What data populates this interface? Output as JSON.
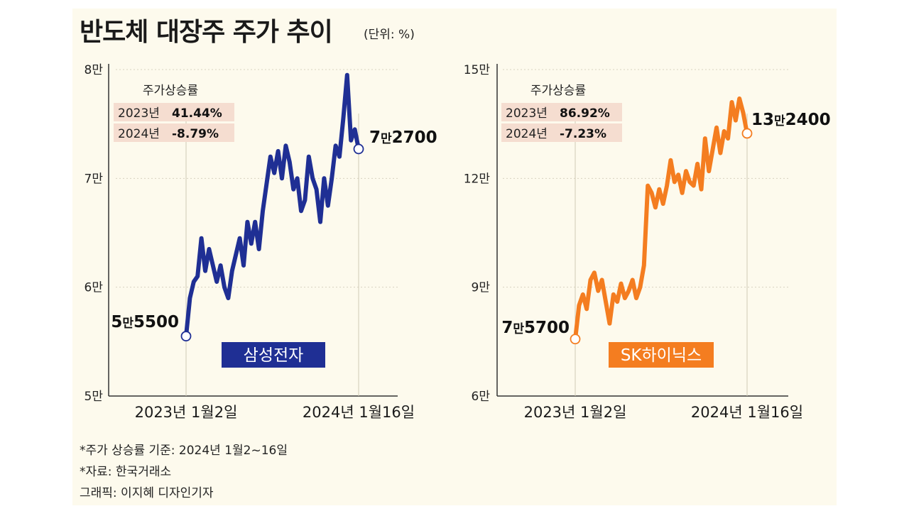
{
  "header": {
    "title": "반도체 대장주 주가 추이",
    "unit": "(단위: %)"
  },
  "footnotes": {
    "basis": "*주가 상승률 기준: 2024년 1월2~16일",
    "source": "*자료: 한국거래소",
    "credit": "그래픽: 이지혜 디자인기자"
  },
  "chart_data": [
    {
      "type": "line",
      "title": "삼성전자",
      "color": "#1f2f94",
      "yticks": [
        "8만",
        "7만",
        "6만",
        "5만"
      ],
      "ylim": [
        50000,
        80000
      ],
      "xlabels": [
        "2023년 1월2일",
        "2024년 1월16일"
      ],
      "box_title": "주가상승률",
      "box_rows": [
        {
          "year": "2023년",
          "value": "41.44%"
        },
        {
          "year": "2024년",
          "value": "-8.79%"
        }
      ],
      "start_label": {
        "prefix": "5",
        "man": "만",
        "rest": "5500"
      },
      "end_label": {
        "prefix": "7",
        "man": "만",
        "rest": "2700"
      },
      "series": [
        {
          "values": [
            55500,
            59000,
            60500,
            61000,
            64500,
            61500,
            63500,
            62000,
            60500,
            62000,
            60000,
            59000,
            61500,
            63000,
            64500,
            62000,
            66000,
            64000,
            66000,
            63500,
            67000,
            69500,
            72000,
            70500,
            72500,
            70000,
            73000,
            71500,
            69000,
            70000,
            67000,
            68000,
            72000,
            70000,
            69000,
            66000,
            70000,
            67500,
            70000,
            73000,
            72000,
            75500,
            79500,
            73500,
            74500,
            72700
          ]
        }
      ]
    },
    {
      "type": "line",
      "title": "SK하이닉스",
      "color": "#f47d20",
      "yticks": [
        "15만",
        "12만",
        "9만",
        "6만"
      ],
      "ylim": [
        60000,
        150000
      ],
      "xlabels": [
        "2023년 1월2일",
        "2024년 1월16일"
      ],
      "box_title": "주가상승률",
      "box_rows": [
        {
          "year": "2023년",
          "value": "86.92%"
        },
        {
          "year": "2024년",
          "value": "-7.23%"
        }
      ],
      "start_label": {
        "prefix": "7",
        "man": "만",
        "rest": "5700"
      },
      "end_label": {
        "prefix": "13",
        "man": "만",
        "rest": "2400"
      },
      "series": [
        {
          "values": [
            75700,
            85000,
            88000,
            84000,
            92000,
            94000,
            89000,
            92000,
            86000,
            80000,
            88000,
            86000,
            91000,
            87000,
            89000,
            92000,
            87000,
            90000,
            96000,
            118000,
            116000,
            112000,
            117000,
            113000,
            118000,
            125000,
            119000,
            121000,
            116000,
            122000,
            119000,
            118000,
            124000,
            117000,
            131000,
            122000,
            128000,
            134000,
            127000,
            133000,
            131000,
            141000,
            136000,
            142000,
            138000,
            132400
          ]
        }
      ]
    }
  ]
}
